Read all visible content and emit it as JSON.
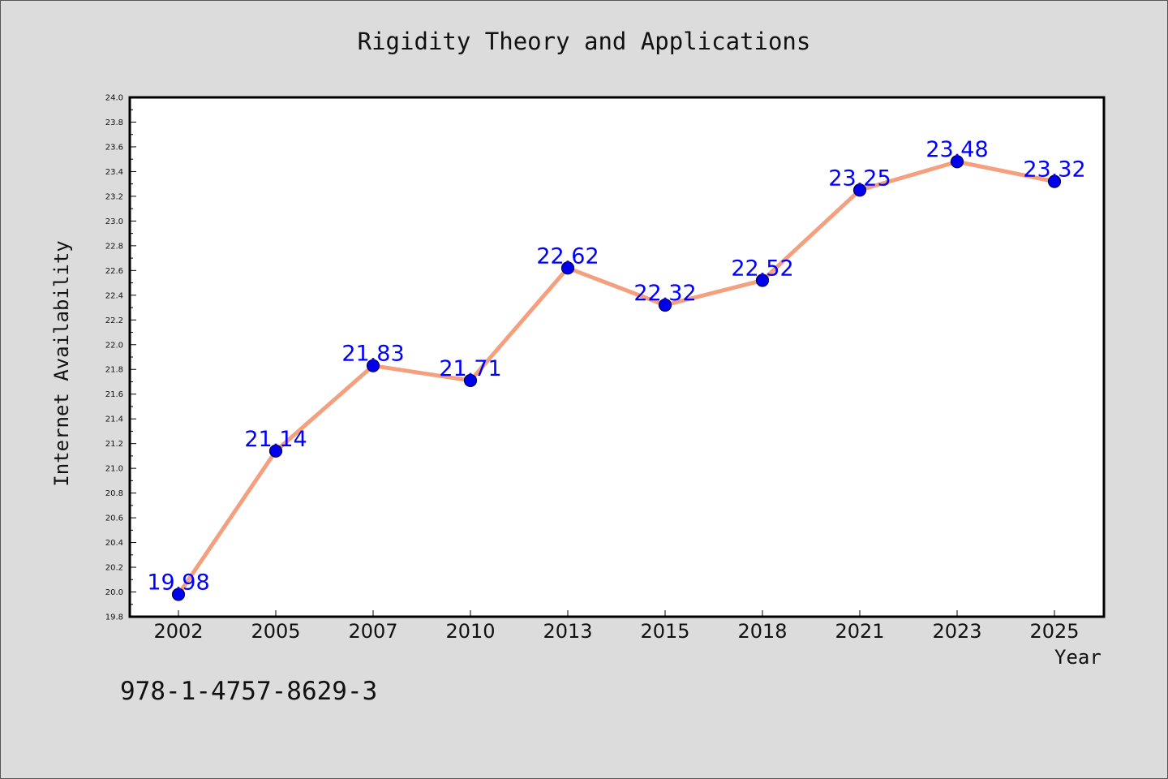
{
  "chart_data": {
    "type": "line",
    "title": "Rigidity Theory and Applications",
    "xlabel": "Year",
    "ylabel": "Internet Availability",
    "categories": [
      "2002",
      "2005",
      "2007",
      "2010",
      "2013",
      "2015",
      "2018",
      "2021",
      "2023",
      "2025"
    ],
    "series": [
      {
        "values": [
          19.98,
          21.14,
          21.83,
          21.71,
          22.62,
          22.32,
          22.52,
          23.25,
          23.48,
          23.32
        ]
      }
    ],
    "data_labels": [
      "19.98",
      "21.14",
      "21.83",
      "21.71",
      "22.62",
      "22.32",
      "22.52",
      "23.25",
      "23.48",
      "23.32"
    ],
    "ylim": [
      19.8,
      24.0
    ],
    "yticks": [
      "19.8",
      "20.0",
      "20.2",
      "20.4",
      "20.6",
      "20.8",
      "21.0",
      "21.2",
      "21.4",
      "21.6",
      "21.8",
      "22.0",
      "22.2",
      "22.4",
      "22.6",
      "22.8",
      "23.0",
      "23.2",
      "23.4",
      "23.6",
      "23.8",
      "24.0"
    ],
    "grid": false,
    "colors": {
      "line": "#f4a07f",
      "marker": "#0000ee",
      "marker_edge": "#00004d",
      "data_label": "#0000ff",
      "background": "#dcdcdc",
      "plot_background": "#ffffff"
    }
  },
  "annotation": {
    "isbn": "978-1-4757-8629-3"
  }
}
